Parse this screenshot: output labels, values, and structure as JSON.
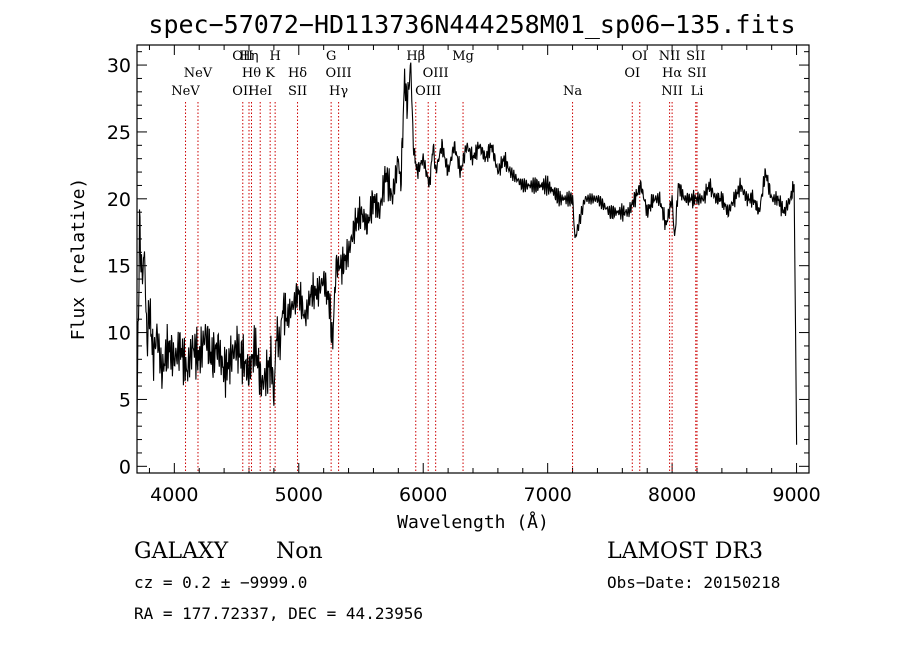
{
  "chart_data": {
    "type": "line",
    "title": "spec−57072−HD113736N444258M01_sp06−135.fits",
    "xlabel": "Wavelength (Å)",
    "ylabel": "Flux (relative)",
    "xlim": [
      3700,
      9100
    ],
    "ylim": [
      -0.5,
      31.5
    ],
    "x_ticks": [
      4000,
      5000,
      6000,
      7000,
      8000,
      9000
    ],
    "y_ticks": [
      0,
      5,
      10,
      15,
      20,
      25,
      30
    ],
    "grid": false,
    "series": [
      {
        "name": "flux",
        "x": [
          3700,
          3720,
          3740,
          3760,
          3780,
          3800,
          3830,
          3860,
          3900,
          3950,
          4000,
          4050,
          4100,
          4150,
          4200,
          4250,
          4300,
          4350,
          4400,
          4450,
          4500,
          4550,
          4600,
          4650,
          4700,
          4750,
          4780,
          4800,
          4820,
          4850,
          4870,
          4900,
          4950,
          5000,
          5050,
          5100,
          5150,
          5200,
          5250,
          5270,
          5300,
          5350,
          5400,
          5450,
          5500,
          5550,
          5600,
          5650,
          5700,
          5750,
          5800,
          5820,
          5850,
          5870,
          5900,
          5920,
          5950,
          6000,
          6050,
          6080,
          6100,
          6150,
          6200,
          6250,
          6300,
          6350,
          6400,
          6450,
          6500,
          6550,
          6600,
          6650,
          6700,
          6800,
          6900,
          7000,
          7100,
          7200,
          7220,
          7300,
          7400,
          7500,
          7600,
          7650,
          7700,
          7750,
          7800,
          7850,
          7900,
          7950,
          8000,
          8020,
          8050,
          8100,
          8150,
          8200,
          8250,
          8300,
          8350,
          8400,
          8450,
          8500,
          8550,
          8600,
          8650,
          8700,
          8750,
          8800,
          8850,
          8900,
          8950,
          8980,
          9000
        ],
        "y": [
          3,
          18,
          14,
          16,
          9,
          12,
          8,
          10,
          7,
          9,
          8,
          9,
          7,
          9,
          8,
          10,
          8,
          9,
          7,
          8,
          9,
          8,
          7,
          9,
          6,
          7,
          8,
          5,
          10,
          9,
          12,
          11,
          12,
          13,
          11,
          13,
          13,
          14,
          12,
          9,
          15,
          15,
          16,
          18,
          19,
          18,
          20,
          19,
          22,
          20,
          23,
          21,
          29,
          27,
          30,
          24,
          22,
          23,
          21,
          24,
          22,
          24,
          22,
          24,
          22,
          24,
          23,
          24,
          23,
          24,
          22,
          23,
          22,
          21,
          21,
          21,
          20,
          20,
          17,
          20,
          20,
          19,
          19,
          19,
          20,
          21,
          19,
          20,
          20,
          18,
          20,
          17,
          21,
          20,
          20,
          20,
          20,
          21,
          20,
          20,
          19,
          20,
          21,
          20,
          20,
          19,
          22,
          20,
          20,
          19,
          20,
          21,
          2
        ]
      }
    ],
    "spectral_lines": [
      {
        "name": "NeV",
        "x": 4090,
        "row": 2
      },
      {
        "name": "NeV",
        "x": 4190,
        "row": 1
      },
      {
        "name": "OII",
        "x": 4550,
        "row": 0
      },
      {
        "name": "OII",
        "x": 4550,
        "row": 2
      },
      {
        "name": "Hη",
        "x": 4600,
        "row": 0
      },
      {
        "name": "Hθ",
        "x": 4620,
        "row": 1
      },
      {
        "name": "HeI",
        "x": 4690,
        "row": 2
      },
      {
        "name": "K",
        "x": 4770,
        "row": 1
      },
      {
        "name": "H",
        "x": 4810,
        "row": 0
      },
      {
        "name": "Hδ",
        "x": 4990,
        "row": 1
      },
      {
        "name": "SII",
        "x": 4990,
        "row": 2
      },
      {
        "name": "G",
        "x": 5260,
        "row": 0
      },
      {
        "name": "OIII",
        "x": 5320,
        "row": 1
      },
      {
        "name": "Hγ",
        "x": 5320,
        "row": 2
      },
      {
        "name": "Hβ",
        "x": 5940,
        "row": 0
      },
      {
        "name": "OIII",
        "x": 6040,
        "row": 2
      },
      {
        "name": "OIII",
        "x": 6100,
        "row": 1
      },
      {
        "name": "Mg",
        "x": 6320,
        "row": 0
      },
      {
        "name": "Na",
        "x": 7200,
        "row": 2
      },
      {
        "name": "OI",
        "x": 7680,
        "row": 1
      },
      {
        "name": "OI",
        "x": 7740,
        "row": 0
      },
      {
        "name": "NII",
        "x": 7980,
        "row": 0
      },
      {
        "name": "Hα",
        "x": 8000,
        "row": 1
      },
      {
        "name": "NII",
        "x": 8000,
        "row": 2
      },
      {
        "name": "SII",
        "x": 8190,
        "row": 0
      },
      {
        "name": "SII",
        "x": 8200,
        "row": 1
      },
      {
        "name": "Li",
        "x": 8200,
        "row": 2
      }
    ]
  },
  "footer": {
    "object_class": "GALAXY",
    "subclass": "Non",
    "survey": "LAMOST DR3",
    "cz": "cz = 0.2 ± −9999.0",
    "obs_date": "Obs−Date: 20150218",
    "coords": "RA = 177.72337, DEC =  44.23956"
  },
  "colors": {
    "line_marker": "#cc0000",
    "spectrum": "#000000"
  }
}
